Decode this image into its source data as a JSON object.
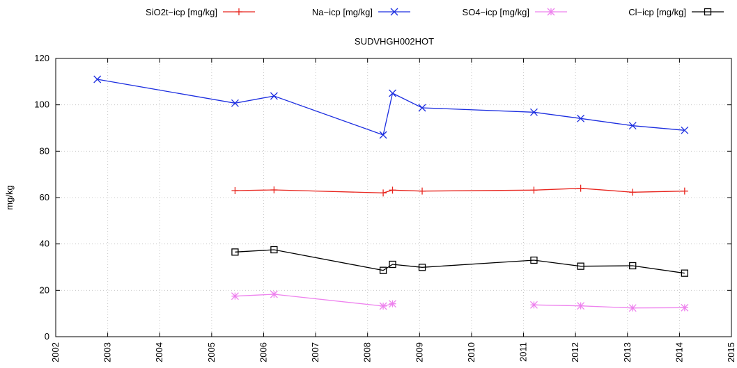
{
  "chart_data": {
    "type": "line",
    "title": "SUDVHGH002HOT",
    "xlabel": "",
    "ylabel": "mg/kg",
    "xlim": [
      2002,
      2015
    ],
    "ylim": [
      0,
      120
    ],
    "x_ticks": [
      "2002",
      "2003",
      "2004",
      "2005",
      "2006",
      "2007",
      "2008",
      "2009",
      "2010",
      "2011",
      "2012",
      "2013",
      "2014",
      "2015"
    ],
    "y_ticks": [
      "0",
      "20",
      "40",
      "60",
      "80",
      "100",
      "120"
    ],
    "grid": true,
    "legend_position": "top",
    "series": [
      {
        "name": "SiO2t−icp [mg/kg]",
        "color": "#e8251e",
        "marker": "plus",
        "points": [
          [
            2005.45,
            63
          ],
          [
            2006.2,
            63.3
          ],
          [
            2008.3,
            62
          ],
          [
            2008.48,
            63.2
          ],
          [
            2009.05,
            62.8
          ],
          [
            2011.2,
            63.2
          ],
          [
            2012.1,
            64
          ],
          [
            2013.1,
            62.3
          ],
          [
            2014.1,
            62.8
          ]
        ]
      },
      {
        "name": "Na−icp [mg/kg]",
        "color": "#1c2ee0",
        "marker": "x",
        "points": [
          [
            2002.8,
            111
          ],
          [
            2005.45,
            100.7
          ],
          [
            2006.2,
            103.8
          ],
          [
            2008.3,
            87
          ],
          [
            2008.48,
            105
          ],
          [
            2009.05,
            98.7
          ],
          [
            2011.2,
            96.8
          ],
          [
            2012.1,
            94.1
          ],
          [
            2013.1,
            91
          ],
          [
            2014.1,
            89
          ]
        ]
      },
      {
        "name": "SO4−icp [mg/kg]",
        "color": "#ee82ee",
        "marker": "star",
        "segments": [
          [
            [
              2005.45,
              17.5
            ],
            [
              2006.2,
              18.3
            ],
            [
              2008.3,
              13.2
            ],
            [
              2008.48,
              14.2
            ]
          ],
          [
            [
              2011.2,
              13.7
            ],
            [
              2012.1,
              13.3
            ],
            [
              2013.1,
              12.4
            ],
            [
              2014.1,
              12.5
            ]
          ]
        ]
      },
      {
        "name": "Cl−icp [mg/kg]",
        "color": "#000000",
        "marker": "square",
        "points": [
          [
            2005.45,
            36.5
          ],
          [
            2006.2,
            37.5
          ],
          [
            2008.3,
            28.6
          ],
          [
            2008.48,
            31.2
          ],
          [
            2009.05,
            29.9
          ],
          [
            2011.2,
            33
          ],
          [
            2012.1,
            30.4
          ],
          [
            2013.1,
            30.6
          ],
          [
            2014.1,
            27.4
          ]
        ]
      }
    ]
  }
}
